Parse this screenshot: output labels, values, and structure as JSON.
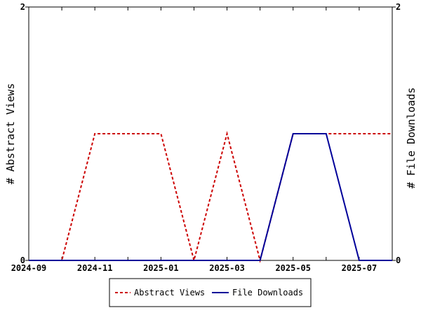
{
  "chart_data": {
    "type": "line",
    "x": [
      "2024-09",
      "2024-10",
      "2024-11",
      "2024-12",
      "2025-01",
      "2025-02",
      "2025-03",
      "2025-04",
      "2025-05",
      "2025-06",
      "2025-07",
      "2025-08"
    ],
    "xtick_labels": [
      "2024-09",
      "2024-11",
      "2025-01",
      "2025-03",
      "2025-05",
      "2025-07"
    ],
    "series": [
      {
        "name": "Abstract Views",
        "axis": "left",
        "color": "#cc0000",
        "style": "dashed",
        "values": [
          0,
          0,
          1,
          1,
          1,
          0,
          1,
          0,
          1,
          1,
          1,
          1
        ]
      },
      {
        "name": "File Downloads",
        "axis": "right",
        "color": "#000099",
        "style": "solid",
        "values": [
          0,
          0,
          0,
          0,
          0,
          0,
          0,
          0,
          1,
          1,
          0,
          0
        ]
      }
    ],
    "ylabel_left": "# Abstract Views",
    "ylabel_right": "# File Downloads",
    "ylim_left": [
      0,
      2
    ],
    "ylim_right": [
      0,
      2
    ],
    "yticks_left": [
      "0",
      "2"
    ],
    "yticks_right": [
      "0",
      "2"
    ],
    "grid": false,
    "legend_position": "bottom-center"
  }
}
